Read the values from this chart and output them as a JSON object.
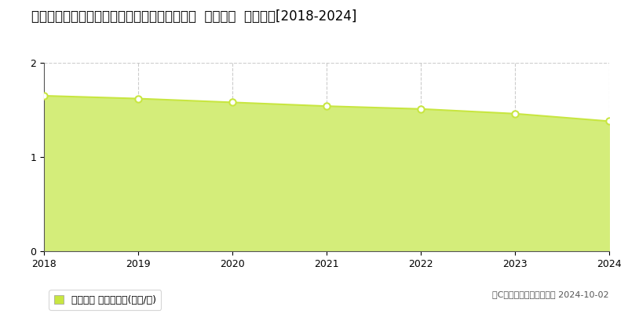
{
  "title": "北海道斜里郡小清水町元町１丁目１３１番２８  基準地価  地価推移[2018-2024]",
  "years": [
    2018,
    2019,
    2020,
    2021,
    2022,
    2023,
    2024
  ],
  "values": [
    1.65,
    1.62,
    1.58,
    1.54,
    1.51,
    1.46,
    1.38
  ],
  "ylim": [
    0,
    2
  ],
  "yticks": [
    0,
    1,
    2
  ],
  "line_color": "#c8e641",
  "fill_color": "#d4ed7a",
  "fill_alpha": 1.0,
  "marker_color": "white",
  "marker_edge_color": "#c8e641",
  "marker_size": 6,
  "marker_linewidth": 1.5,
  "line_width": 1.5,
  "grid_color": "#aaaaaa",
  "grid_style": "--",
  "grid_alpha": 0.6,
  "legend_label": "基準地価 平均坪単価(万円/坪)",
  "legend_color": "#c8e641",
  "copyright_text": "（C）土地価格ドットコム 2024-10-02",
  "background_color": "#ffffff",
  "title_fontsize": 12,
  "tick_fontsize": 9,
  "legend_fontsize": 9,
  "copyright_fontsize": 8,
  "spine_color": "#555555"
}
